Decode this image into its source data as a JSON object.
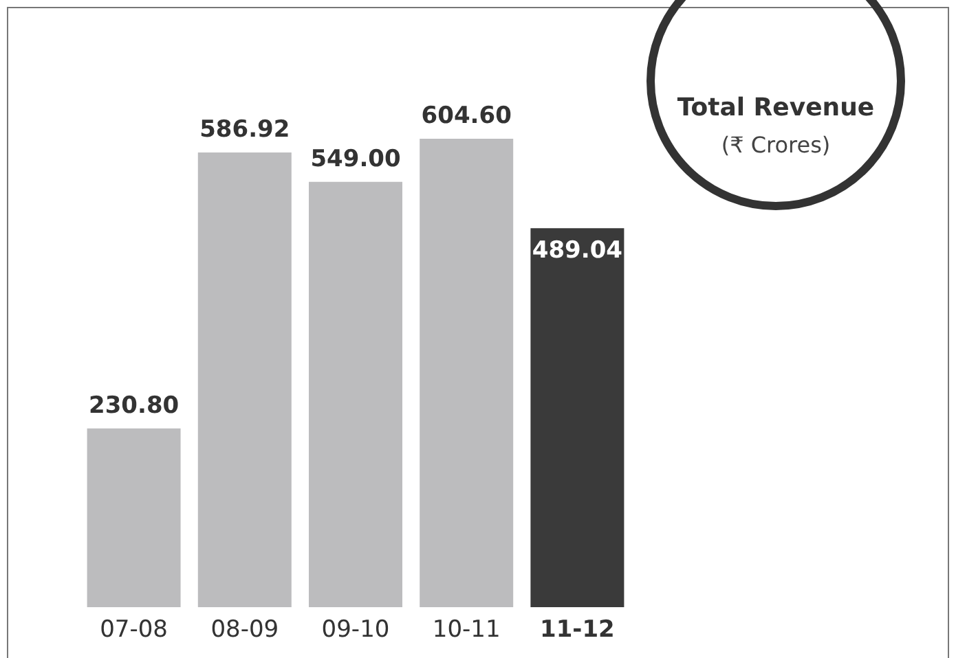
{
  "chart_data": {
    "type": "bar",
    "title": "Total Revenue",
    "subtitle": "(₹ Crores)",
    "categories": [
      "07-08",
      "08-09",
      "09-10",
      "10-11",
      "11-12"
    ],
    "values": [
      230.8,
      586.92,
      549.0,
      604.6,
      489.04
    ],
    "value_labels": [
      "230.80",
      "586.92",
      "549.00",
      "604.60",
      "489.04"
    ],
    "colors": [
      "#bcbcbe",
      "#bcbcbe",
      "#bcbcbe",
      "#bcbcbe",
      "#3a3a3a"
    ]
  }
}
